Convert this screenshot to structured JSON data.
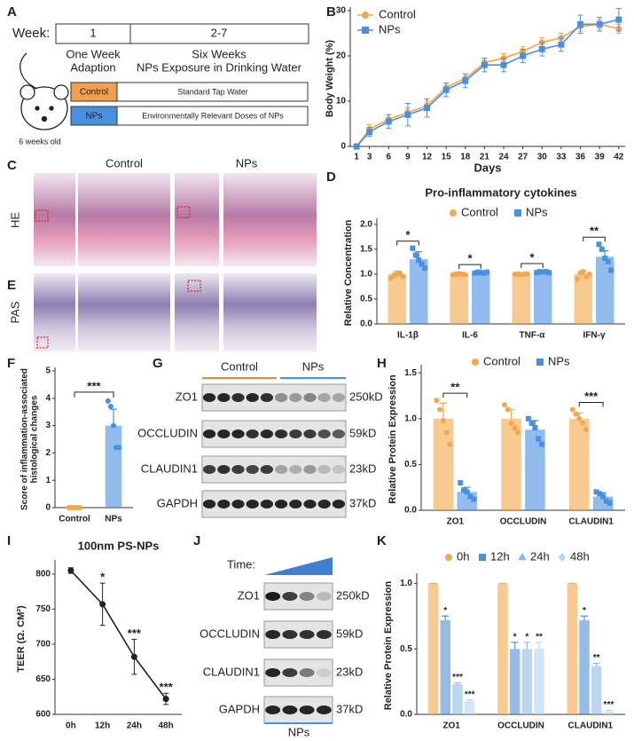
{
  "panels": [
    "A",
    "B",
    "C",
    "D",
    "E",
    "F",
    "G",
    "H",
    "I",
    "J",
    "K"
  ],
  "schematic": {
    "week_label": "Week:",
    "weeks": [
      "1",
      "2-7"
    ],
    "phases": [
      [
        "One Week",
        "Adaption"
      ],
      [
        "Six Weeks",
        "NPs Exposure in Drinking Water"
      ]
    ],
    "groups": [
      {
        "name": "Control",
        "treatment": "Standard Tap Water"
      },
      {
        "name": "NPs",
        "treatment": "Environmentally Relevant Doses of NPs"
      }
    ],
    "age": "6 weeks old"
  },
  "histology": {
    "groups": [
      "Control",
      "NPs"
    ],
    "stains": [
      "HE",
      "PAS"
    ]
  },
  "blots": [
    {
      "groups": [
        "Control",
        "NPs"
      ],
      "rows": [
        {
          "protein": "ZO1",
          "size": "250kD"
        },
        {
          "protein": "OCCLUDIN",
          "size": "59kD"
        },
        {
          "protein": "CLAUDIN1",
          "size": "23kD"
        },
        {
          "protein": "GAPDH",
          "size": "37kD"
        }
      ]
    },
    {
      "time_label": "Time:",
      "group": "NPs",
      "rows": [
        {
          "protein": "ZO1",
          "size": "250kD"
        },
        {
          "protein": "OCCLUDIN",
          "size": "59kD"
        },
        {
          "protein": "CLAUDIN1",
          "size": "23kD"
        },
        {
          "protein": "GAPDH",
          "size": "37kD"
        }
      ]
    }
  ],
  "chart_data": [
    {
      "type": "line",
      "ylabel": "Body Weight (%)",
      "xlabel": "Days",
      "legend": "upper left",
      "x": [
        1,
        3,
        6,
        9,
        12,
        15,
        18,
        21,
        24,
        27,
        30,
        33,
        36,
        39,
        42
      ],
      "xlim": [
        0,
        43
      ],
      "xticks": [
        1,
        3,
        6,
        9,
        12,
        15,
        18,
        21,
        24,
        27,
        30,
        33,
        36,
        39,
        42
      ],
      "ylim": [
        0,
        30
      ],
      "yticks": [
        0,
        10,
        20,
        30
      ],
      "series": [
        {
          "name": "Control",
          "color": "#f5a54a",
          "marker": "circle",
          "values": [
            0,
            3.8,
            6,
            7.5,
            9,
            13,
            15,
            18.5,
            19.5,
            21,
            23,
            24,
            26.5,
            27,
            26
          ],
          "errors": [
            0.3,
            1,
            1,
            1,
            1,
            1,
            1,
            1,
            1,
            1,
            1,
            1,
            1,
            1,
            1
          ]
        },
        {
          "name": "NPs",
          "color": "#4a90e2",
          "marker": "square",
          "values": [
            0,
            3.2,
            5.5,
            7,
            8.5,
            12.5,
            14.5,
            18,
            18,
            20,
            21.5,
            22.5,
            27,
            27,
            28
          ],
          "errors": [
            0.3,
            1,
            1.5,
            2.5,
            2,
            1.5,
            1.5,
            1.5,
            1.5,
            1.5,
            1.5,
            1.5,
            2,
            1.5,
            2.5
          ]
        }
      ]
    },
    {
      "type": "bar",
      "title": "Pro-inflammatory cytokines",
      "ylabel": "Relative Concentration",
      "legend": "upper center",
      "categories": [
        "IL-1β",
        "IL-6",
        "TNF-α",
        "IFN-γ"
      ],
      "ylim": [
        0,
        2.05
      ],
      "yticks": [
        {
          "value": 0,
          "label": "0.0"
        },
        0.5,
        {
          "value": 1,
          "label": "1.0"
        },
        1.5,
        {
          "value": 2,
          "label": "2.0"
        }
      ],
      "significance": [
        "*",
        "*",
        "*",
        "**"
      ],
      "series": [
        {
          "name": "Control",
          "color": "#f5a54a",
          "marker": "circle",
          "values": [
            1.0,
            1.0,
            1.0,
            1.0
          ],
          "errors": [
            0.06,
            0.02,
            0.01,
            0.07
          ],
          "points": [
            [
              0.92,
              0.98,
              1.0,
              1.02,
              0.95
            ],
            [
              0.99,
              1.0,
              1.01,
              1.0,
              0.99
            ],
            [
              1.0,
              1.0,
              0.99,
              1.0,
              1.01
            ],
            [
              0.9,
              1.02,
              1.05,
              0.95,
              1.0
            ]
          ]
        },
        {
          "name": "NPs",
          "color": "#4a90e2",
          "marker": "square",
          "values": [
            1.3,
            1.03,
            1.04,
            1.35
          ],
          "errors": [
            0.15,
            0.02,
            0.03,
            0.12
          ],
          "points": [
            [
              1.52,
              1.38,
              1.28,
              1.2,
              1.12
            ],
            [
              1.02,
              1.04,
              1.03,
              1.02,
              1.04
            ],
            [
              1.03,
              1.05,
              1.04,
              1.05,
              1.03
            ],
            [
              1.6,
              1.5,
              1.32,
              1.25,
              1.08
            ]
          ]
        }
      ]
    },
    {
      "type": "bar",
      "ylabel": [
        "Score of inflammation-associated",
        "histological changes"
      ],
      "categories": [
        "Control",
        "NPs"
      ],
      "ylim": [
        0,
        5
      ],
      "yticks": [
        0,
        1,
        2,
        3,
        4,
        5
      ],
      "significance": "***",
      "series": [
        {
          "colors": [
            "#f5a54a",
            "#4a90e2"
          ],
          "marker": "circle",
          "values": [
            0,
            3.0
          ],
          "errors": [
            0,
            0.6
          ],
          "points": [
            [
              0,
              0,
              0,
              0,
              0
            ],
            [
              3.9,
              3.7,
              3.0,
              2.2,
              2.2
            ]
          ]
        }
      ]
    },
    {
      "type": "bar",
      "ylabel": "Relative Protein Expression",
      "legend": "upper center",
      "categories": [
        "ZO1",
        "OCCLUDIN",
        "CLAUDIN1"
      ],
      "ylim": [
        0,
        1.55
      ],
      "yticks": [
        {
          "value": 0,
          "label": "0.0"
        },
        0.5,
        {
          "value": 1,
          "label": "1.0"
        },
        1.5
      ],
      "significance": [
        "**",
        null,
        "***"
      ],
      "series": [
        {
          "name": "Control",
          "color": "#f5a54a",
          "marker": "circle",
          "values": [
            1.0,
            1.0,
            1.0
          ],
          "errors": [
            0.17,
            0.1,
            0.06
          ],
          "points": [
            [
              1.2,
              1.1,
              0.98,
              0.85,
              0.72
            ],
            [
              1.15,
              1.1,
              0.95,
              0.9,
              0.85
            ],
            [
              1.1,
              1.05,
              1.0,
              0.95,
              0.88
            ]
          ]
        },
        {
          "name": "NPs",
          "color": "#4a90e2",
          "marker": "square",
          "values": [
            0.2,
            0.88,
            0.15
          ],
          "errors": [
            0.05,
            0.1,
            0.04
          ],
          "points": [
            [
              0.3,
              0.22,
              0.2,
              0.15,
              0.12
            ],
            [
              1.0,
              0.95,
              0.9,
              0.78,
              0.72
            ],
            [
              0.2,
              0.18,
              0.15,
              0.1,
              0.08
            ]
          ]
        }
      ]
    },
    {
      "type": "line",
      "title": "100nm PS-NPs",
      "ylabel": "TEER (Ω. CM²)",
      "categories": [
        "0h",
        "12h",
        "24h",
        "48h"
      ],
      "ylim": [
        600,
        815
      ],
      "yticks": [
        600,
        650,
        700,
        750,
        800
      ],
      "series": [
        {
          "color": "#222222",
          "marker": "circle",
          "values": [
            805,
            757,
            682,
            622
          ],
          "errors": [
            4,
            30,
            25,
            8
          ],
          "sig": [
            null,
            "*",
            "***",
            "***"
          ]
        }
      ]
    },
    {
      "type": "bar",
      "ylabel": "Relative Protein Expression",
      "legend": "upper center",
      "categories": [
        "ZO1",
        "OCCLUDIN",
        "CLAUDIN1"
      ],
      "ylim": [
        0,
        1.05
      ],
      "yticks": [
        {
          "value": 0,
          "label": "0.0"
        },
        0.5,
        {
          "value": 1,
          "label": "1.0"
        }
      ],
      "series": [
        {
          "name": "0h",
          "color": "#f5a54a",
          "marker": "circle",
          "values": [
            1,
            1,
            1
          ],
          "errors": [
            0,
            0,
            0
          ],
          "sig": [
            null,
            null,
            null
          ]
        },
        {
          "name": "12h",
          "color": "#4f8fd6",
          "marker": "square",
          "values": [
            0.72,
            0.5,
            0.72
          ],
          "errors": [
            0.03,
            0.05,
            0.03
          ],
          "sig": [
            "*",
            "*",
            "*"
          ]
        },
        {
          "name": "24h",
          "color": "#8fb9e8",
          "marker": "triangle",
          "values": [
            0.23,
            0.5,
            0.37
          ],
          "errors": [
            0.01,
            0.05,
            0.02
          ],
          "sig": [
            "***",
            "*",
            "**"
          ]
        },
        {
          "name": "48h",
          "color": "#b9d3f0",
          "marker": "diamond",
          "values": [
            0.1,
            0.5,
            0.02
          ],
          "errors": [
            0.01,
            0.05,
            0.01
          ],
          "sig": [
            "***",
            "**",
            "***"
          ]
        }
      ]
    }
  ]
}
